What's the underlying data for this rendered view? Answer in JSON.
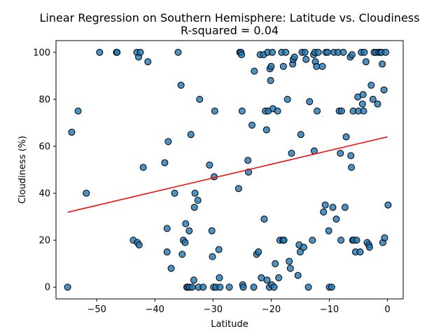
{
  "chart_data": {
    "type": "scatter",
    "title": "Linear Regression on Southern Hemisphere: Latitude vs. Cloudiness",
    "subtitle": "R-squared = 0.04",
    "xlabel": "Latitude",
    "ylabel": "Cloudiness (%)",
    "xlim": [
      -57,
      2.7
    ],
    "ylim": [
      -5,
      105
    ],
    "xticks": [
      -50,
      -40,
      -30,
      -20,
      -10,
      0
    ],
    "yticks": [
      0,
      20,
      40,
      60,
      80,
      100
    ],
    "grid": false,
    "point_color": "#1f77b4",
    "point_edge_color": "#000000",
    "regression": {
      "color": "#ff0000",
      "x": [
        -55,
        0
      ],
      "y": [
        31.9,
        64.0
      ]
    },
    "points": [
      [
        -55.0,
        0
      ],
      [
        -54.3,
        66
      ],
      [
        -53.2,
        75
      ],
      [
        -51.8,
        40
      ],
      [
        -49.5,
        100
      ],
      [
        -46.6,
        100
      ],
      [
        -46.5,
        100
      ],
      [
        -43.7,
        20
      ],
      [
        -43.1,
        100
      ],
      [
        -43.0,
        19
      ],
      [
        -42.8,
        98
      ],
      [
        -42.7,
        18
      ],
      [
        -42.5,
        100
      ],
      [
        -42.0,
        51
      ],
      [
        -41.2,
        96
      ],
      [
        -38.3,
        53
      ],
      [
        -37.9,
        25
      ],
      [
        -37.9,
        15
      ],
      [
        -37.7,
        62
      ],
      [
        -37.2,
        8
      ],
      [
        -36.6,
        40
      ],
      [
        -36.0,
        100
      ],
      [
        -35.5,
        86
      ],
      [
        -35.3,
        14
      ],
      [
        -35.1,
        20
      ],
      [
        -34.8,
        19
      ],
      [
        -34.7,
        27
      ],
      [
        -34.5,
        0
      ],
      [
        -34.3,
        0
      ],
      [
        -34.1,
        24
      ],
      [
        -34.0,
        0
      ],
      [
        -33.8,
        65
      ],
      [
        -33.6,
        0
      ],
      [
        -33.3,
        3
      ],
      [
        -33.2,
        34
      ],
      [
        -33.1,
        40
      ],
      [
        -32.6,
        37
      ],
      [
        -32.5,
        0
      ],
      [
        -32.3,
        80
      ],
      [
        -31.7,
        0
      ],
      [
        -30.6,
        52
      ],
      [
        -30.2,
        24
      ],
      [
        -30.1,
        13
      ],
      [
        -29.9,
        0
      ],
      [
        -29.8,
        47
      ],
      [
        -29.7,
        75
      ],
      [
        -29.5,
        0
      ],
      [
        -29.0,
        16
      ],
      [
        -28.9,
        4
      ],
      [
        -28.8,
        0
      ],
      [
        -27.2,
        0
      ],
      [
        -25.6,
        42
      ],
      [
        -25.4,
        100
      ],
      [
        -25.2,
        100
      ],
      [
        -25.1,
        99
      ],
      [
        -25.0,
        75
      ],
      [
        -24.9,
        1
      ],
      [
        -24.8,
        0
      ],
      [
        -24.0,
        54
      ],
      [
        -23.9,
        49
      ],
      [
        -23.3,
        69
      ],
      [
        -23.0,
        0
      ],
      [
        -22.9,
        92
      ],
      [
        -22.5,
        14
      ],
      [
        -22.2,
        15
      ],
      [
        -21.9,
        99
      ],
      [
        -21.7,
        4
      ],
      [
        -21.3,
        99
      ],
      [
        -21.2,
        29
      ],
      [
        -21.0,
        75
      ],
      [
        -20.8,
        67
      ],
      [
        -20.7,
        3
      ],
      [
        -20.6,
        100
      ],
      [
        -20.5,
        75
      ],
      [
        -20.3,
        0
      ],
      [
        -20.2,
        93
      ],
      [
        -20.1,
        88
      ],
      [
        -20.0,
        94
      ],
      [
        -19.9,
        1
      ],
      [
        -19.8,
        100
      ],
      [
        -19.7,
        76
      ],
      [
        -19.5,
        0
      ],
      [
        -19.3,
        10
      ],
      [
        -18.9,
        75
      ],
      [
        -18.7,
        4
      ],
      [
        -18.5,
        20
      ],
      [
        -18.2,
        100
      ],
      [
        -18.0,
        20
      ],
      [
        -17.9,
        94
      ],
      [
        -17.8,
        20
      ],
      [
        -17.5,
        100
      ],
      [
        -17.2,
        80
      ],
      [
        -16.9,
        11
      ],
      [
        -16.7,
        8
      ],
      [
        -16.5,
        57
      ],
      [
        -16.3,
        95
      ],
      [
        -16.2,
        97
      ],
      [
        -16.0,
        98
      ],
      [
        -15.4,
        5
      ],
      [
        -15.2,
        18
      ],
      [
        -15.0,
        15
      ],
      [
        -14.9,
        65
      ],
      [
        -14.7,
        100
      ],
      [
        -14.4,
        17
      ],
      [
        -14.2,
        100
      ],
      [
        -14.0,
        97
      ],
      [
        -13.6,
        0
      ],
      [
        -13.4,
        79
      ],
      [
        -12.9,
        20
      ],
      [
        -12.7,
        99
      ],
      [
        -12.6,
        58
      ],
      [
        -12.5,
        100
      ],
      [
        -12.4,
        96
      ],
      [
        -12.2,
        94
      ],
      [
        -12.1,
        75
      ],
      [
        -11.9,
        100
      ],
      [
        -11.2,
        94
      ],
      [
        -11.0,
        32
      ],
      [
        -10.7,
        35
      ],
      [
        -10.6,
        100
      ],
      [
        -10.3,
        100
      ],
      [
        -10.1,
        24
      ],
      [
        -10.0,
        0
      ],
      [
        -9.6,
        0
      ],
      [
        -9.4,
        34
      ],
      [
        -9.2,
        100
      ],
      [
        -8.8,
        29
      ],
      [
        -8.5,
        100
      ],
      [
        -8.3,
        75
      ],
      [
        -8.1,
        57
      ],
      [
        -8.0,
        20
      ],
      [
        -7.9,
        75
      ],
      [
        -7.6,
        100
      ],
      [
        -7.3,
        34
      ],
      [
        -7.1,
        64
      ],
      [
        -6.4,
        98
      ],
      [
        -6.3,
        56
      ],
      [
        -6.2,
        51
      ],
      [
        -6.1,
        99
      ],
      [
        -6.0,
        20
      ],
      [
        -5.9,
        75
      ],
      [
        -5.8,
        20
      ],
      [
        -5.5,
        15
      ],
      [
        -5.3,
        20
      ],
      [
        -5.1,
        81
      ],
      [
        -5.0,
        75
      ],
      [
        -4.7,
        15
      ],
      [
        -4.5,
        100
      ],
      [
        -4.3,
        78
      ],
      [
        -4.2,
        82
      ],
      [
        -4.1,
        75
      ],
      [
        -4.0,
        100
      ],
      [
        -3.7,
        96
      ],
      [
        -3.5,
        19
      ],
      [
        -3.2,
        18
      ],
      [
        -3.1,
        17
      ],
      [
        -2.8,
        86
      ],
      [
        -2.5,
        80
      ],
      [
        -2.3,
        100
      ],
      [
        -2.0,
        100
      ],
      [
        -1.7,
        78
      ],
      [
        -1.5,
        100
      ],
      [
        -1.2,
        100
      ],
      [
        -1.0,
        100
      ],
      [
        -0.9,
        95
      ],
      [
        -0.8,
        19
      ],
      [
        -0.6,
        84
      ],
      [
        -0.5,
        21
      ],
      [
        -0.3,
        100
      ],
      [
        0.1,
        35
      ]
    ]
  }
}
